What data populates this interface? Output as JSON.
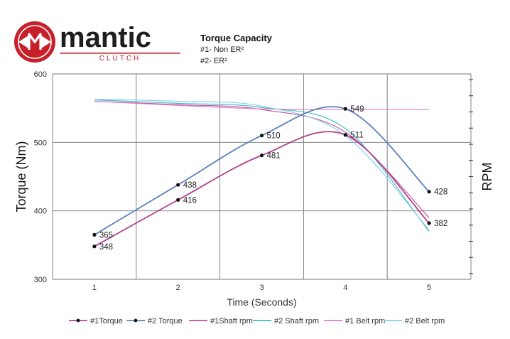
{
  "brand": {
    "name": "mantic",
    "tagline": "CLUTCH",
    "colors": {
      "red": "#c8202a",
      "dark": "#1e1e1e"
    }
  },
  "header": {
    "title": "Torque Capacity",
    "line1": "#1- Non ER²",
    "line2": "#2- ER²"
  },
  "chart_data": {
    "type": "line",
    "xlabel": "Time (Seconds)",
    "ylabel": "Torque (Nm)",
    "y2label": "RPM",
    "x": [
      1,
      2,
      3,
      4,
      5
    ],
    "xlim": [
      0.5,
      5.5
    ],
    "ylim": [
      300,
      600
    ],
    "yticks": [
      300,
      400,
      500,
      600
    ],
    "grid": true,
    "legend_position": "bottom",
    "series": [
      {
        "name": "#1Torque",
        "color": "#b0408e",
        "marker": true,
        "values": [
          348,
          416,
          481,
          511,
          382
        ],
        "labels": [
          "348",
          "416",
          "481",
          "511",
          "382"
        ]
      },
      {
        "name": "#2 Torque",
        "color": "#5b7fbd",
        "marker": true,
        "values": [
          365,
          438,
          510,
          549,
          428
        ],
        "labels": [
          "365",
          "438",
          "510",
          "549",
          "428"
        ]
      },
      {
        "name": "#1Shaft rpm",
        "color": "#c24fa0",
        "marker": false,
        "values": [
          560,
          555,
          548,
          515,
          390
        ]
      },
      {
        "name": "#2 Shaft rpm",
        "color": "#3fb6c2",
        "marker": false,
        "values": [
          562,
          557,
          551,
          520,
          370
        ]
      },
      {
        "name": "#1 Belt rpm",
        "color": "#e07cc3",
        "marker": false,
        "values": [
          560,
          554,
          549,
          548,
          548
        ]
      },
      {
        "name": "#2 Belt rpm",
        "color": "#7fd0e0",
        "marker": false,
        "values": [
          563,
          560,
          553,
          510,
          372
        ]
      }
    ]
  }
}
